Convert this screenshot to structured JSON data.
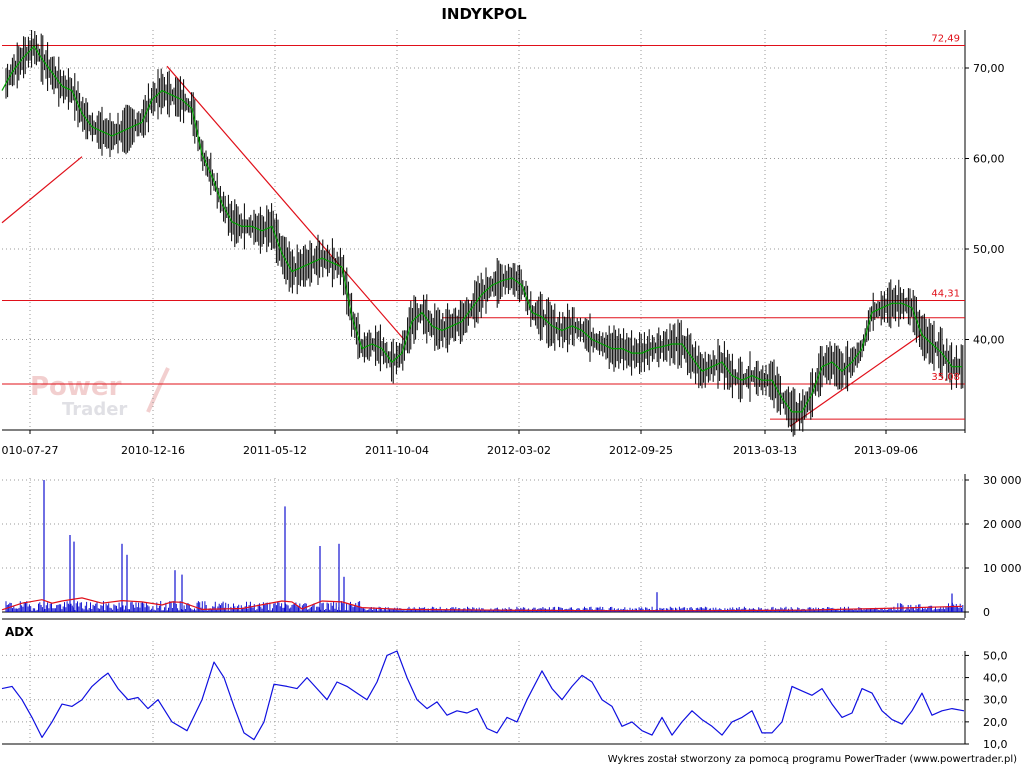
{
  "title": "INDYKPOL",
  "footer": "Wykres został stworzony za pomocą programu PowerTrader (www.powertrader.pl)",
  "watermark": {
    "line1": "Power",
    "line2": "Trader"
  },
  "colors": {
    "background": "#ffffff",
    "grid": "#9a9a9a",
    "price_line": "#000000",
    "price_ma": "#00a000",
    "levels": "#e0101a",
    "volume": "#1010d0",
    "volume_avg": "#e0101a",
    "adx": "#1010e0",
    "watermark": "#e8a8a8"
  },
  "chart_data": [
    {
      "type": "line",
      "name": "price",
      "x_tick_labels": [
        "010-07-27",
        "2010-12-16",
        "2011-05-12",
        "2011-10-04",
        "2012-03-02",
        "2012-09-25",
        "2013-03-13",
        "2013-09-06"
      ],
      "y_tick_labels": [
        "70,00",
        "60,00",
        "50,00",
        "40,00"
      ],
      "ylim": [
        30,
        74.2
      ],
      "grid": true,
      "level_labels": [
        "72,49",
        "44,31",
        "35,08"
      ],
      "horizontal_levels": [
        72.49,
        44.31,
        35.08,
        42.4,
        31.2
      ],
      "trendlines": [
        {
          "from": [
            0,
            52.9
          ],
          "to": [
            80,
            60.2
          ]
        },
        {
          "from": [
            165,
            70.2
          ],
          "to": [
            402,
            40.0
          ]
        },
        {
          "from": [
            788,
            30.4
          ],
          "to": [
            920,
            40.6
          ]
        }
      ],
      "series": [
        {
          "x": [
            0,
            10,
            20,
            32,
            40,
            50,
            60,
            70,
            80,
            90,
            100,
            110,
            120,
            130,
            140,
            150,
            160,
            170,
            180,
            190,
            200,
            210,
            220,
            230,
            240,
            250,
            260,
            270,
            280,
            290,
            300,
            310,
            320,
            330,
            340,
            350,
            360,
            370,
            380,
            390,
            400,
            410,
            420,
            430,
            440,
            450,
            460,
            470,
            480,
            490,
            500,
            510,
            520,
            530,
            540,
            550,
            560,
            570,
            580,
            590,
            600,
            610,
            620,
            630,
            640,
            650,
            660,
            670,
            680,
            690,
            700,
            710,
            720,
            730,
            740,
            750,
            760,
            770,
            780,
            790,
            800,
            810,
            820,
            830,
            840,
            850,
            860,
            870,
            880,
            890,
            900,
            910,
            920,
            930,
            940,
            950,
            960
          ],
          "y": [
            67.5,
            69.5,
            71.0,
            72.4,
            71.0,
            69.5,
            68.0,
            67.5,
            65.0,
            63.5,
            63.0,
            62.5,
            63.0,
            63.5,
            64.0,
            66.5,
            67.5,
            67.0,
            66.5,
            65.5,
            60.5,
            58.0,
            55.0,
            53.0,
            52.5,
            52.5,
            52.0,
            52.5,
            49.5,
            47.5,
            48.0,
            48.5,
            49.0,
            48.5,
            48.0,
            42.5,
            39.0,
            39.5,
            39.0,
            37.5,
            38.5,
            42.0,
            43.0,
            41.5,
            41.0,
            41.5,
            42.0,
            43.5,
            45.0,
            46.0,
            46.5,
            46.8,
            46.0,
            43.0,
            42.5,
            41.5,
            41.0,
            41.5,
            41.0,
            40.0,
            39.5,
            39.0,
            39.0,
            38.5,
            38.5,
            39.0,
            39.2,
            39.5,
            39.5,
            38.0,
            36.5,
            37.0,
            37.5,
            36.0,
            35.5,
            36.0,
            35.5,
            35.5,
            33.5,
            32.0,
            32.0,
            34.0,
            37.0,
            37.5,
            36.5,
            37.5,
            39.0,
            43.0,
            43.5,
            44.0,
            44.0,
            43.5,
            40.5,
            39.5,
            38.5,
            37.0,
            37.0
          ]
        }
      ]
    },
    {
      "type": "bar",
      "name": "volume",
      "y_tick_labels": [
        "30 000",
        "20 000",
        "10 000",
        "0"
      ],
      "ylim": [
        0,
        30000
      ],
      "grid": true,
      "spikes": [
        {
          "x": 42,
          "value": 30000
        },
        {
          "x": 68,
          "value": 17500
        },
        {
          "x": 72,
          "value": 16000
        },
        {
          "x": 120,
          "value": 15500
        },
        {
          "x": 125,
          "value": 13000
        },
        {
          "x": 173,
          "value": 9500
        },
        {
          "x": 180,
          "value": 8500
        },
        {
          "x": 283,
          "value": 24000
        },
        {
          "x": 318,
          "value": 15000
        },
        {
          "x": 337,
          "value": 15500
        },
        {
          "x": 342,
          "value": 8000
        },
        {
          "x": 655,
          "value": 4500
        },
        {
          "x": 950,
          "value": 4200
        }
      ],
      "moving_average": {
        "x": [
          0,
          20,
          40,
          50,
          60,
          80,
          100,
          120,
          140,
          160,
          170,
          180,
          200,
          240,
          280,
          290,
          300,
          320,
          340,
          360,
          400,
          500,
          600,
          700,
          800,
          900,
          960
        ],
        "y": [
          500,
          2000,
          2800,
          2000,
          2500,
          3200,
          2000,
          2600,
          2300,
          1600,
          2300,
          2200,
          600,
          800,
          2500,
          2300,
          700,
          2500,
          2300,
          1000,
          600,
          400,
          300,
          300,
          400,
          900,
          1300
        ]
      }
    },
    {
      "type": "line",
      "name": "adx",
      "title": "ADX",
      "y_tick_labels": [
        "50,0",
        "40,0",
        "30,0",
        "20,0",
        "10,0"
      ],
      "ylim": [
        10,
        52
      ],
      "grid": true,
      "series": [
        {
          "x": [
            0,
            10,
            20,
            30,
            40,
            50,
            60,
            70,
            80,
            90,
            100,
            106,
            116,
            126,
            136,
            146,
            156,
            170,
            185,
            200,
            212,
            222,
            232,
            242,
            252,
            262,
            272,
            285,
            295,
            305,
            315,
            325,
            335,
            345,
            355,
            365,
            375,
            385,
            395,
            405,
            415,
            425,
            435,
            445,
            455,
            465,
            475,
            485,
            495,
            505,
            515,
            525,
            540,
            550,
            560,
            570,
            580,
            590,
            600,
            610,
            620,
            630,
            640,
            650,
            660,
            670,
            680,
            690,
            700,
            710,
            720,
            730,
            740,
            750,
            760,
            770,
            780,
            790,
            800,
            810,
            820,
            830,
            840,
            850,
            860,
            870,
            880,
            890,
            900,
            910,
            920,
            930,
            940,
            950,
            962
          ],
          "y": [
            35,
            36,
            30,
            22,
            13,
            20,
            28,
            27,
            30,
            36,
            40,
            42,
            35,
            30,
            31,
            26,
            30,
            20,
            16,
            30,
            47,
            40,
            27,
            15,
            12,
            20,
            37,
            36,
            35,
            40,
            35,
            30,
            38,
            36,
            33,
            30,
            38,
            50,
            52,
            40,
            30,
            26,
            29,
            23,
            25,
            24,
            26,
            17,
            15,
            22,
            20,
            30,
            43,
            35,
            30,
            36,
            41,
            38,
            30,
            27,
            18,
            20,
            16,
            14,
            22,
            14,
            20,
            25,
            21,
            18,
            14,
            20,
            22,
            25,
            15,
            15,
            20,
            36,
            34,
            32,
            35,
            28,
            22,
            24,
            35,
            33,
            25,
            21,
            19,
            25,
            33,
            23,
            25,
            26,
            25
          ]
        }
      ]
    }
  ]
}
